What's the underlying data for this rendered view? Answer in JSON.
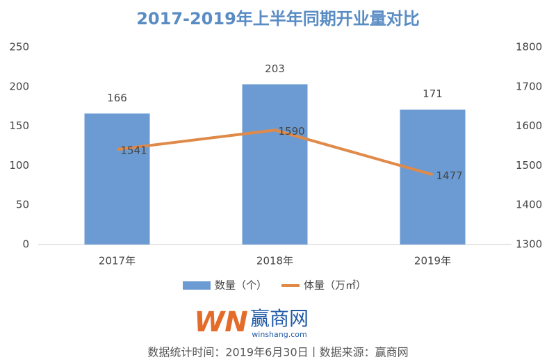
{
  "chart_data": {
    "type": "bar",
    "title": "2017-2019年上半年同期开业量对比",
    "categories": [
      "2017年",
      "2018年",
      "2019年"
    ],
    "series": [
      {
        "name": "数量（个）",
        "type": "bar",
        "color": "#6b9bd2",
        "values": [
          166,
          203,
          171
        ]
      },
      {
        "name": "体量（万㎡）",
        "type": "line",
        "axis": "y2",
        "color": "#e08a4a",
        "values": [
          1541,
          1590,
          1477
        ]
      }
    ],
    "ylim": [
      0,
      250
    ],
    "yticks": [
      0,
      50,
      100,
      150,
      200,
      250
    ],
    "y2lim": [
      1300,
      1800
    ],
    "y2ticks": [
      1300,
      1400,
      1500,
      1600,
      1700,
      1800
    ],
    "grid": false,
    "legend": "bottom",
    "logo": {
      "mark": "WN",
      "name": "赢商网",
      "url": "winshang.com"
    },
    "source": "数据统计时间：2019年6月30日丨数据来源：赢商网"
  }
}
